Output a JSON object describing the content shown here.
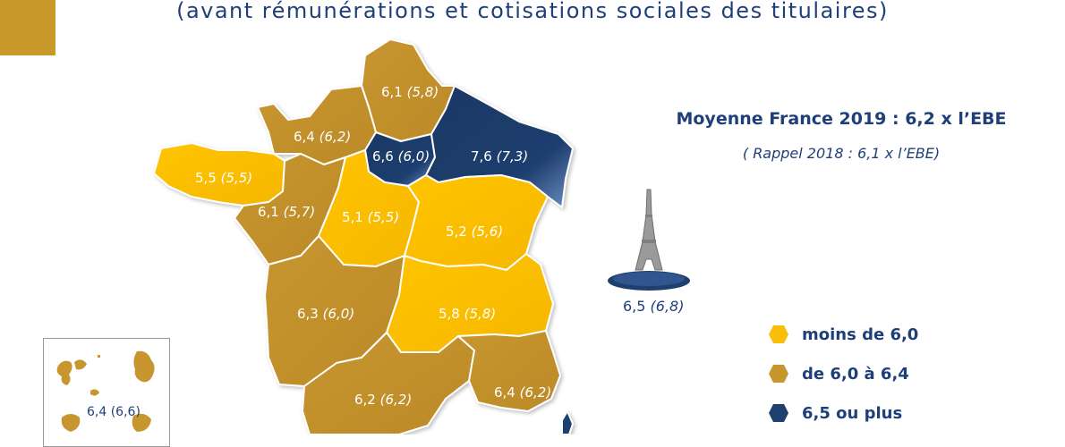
{
  "header": {
    "subtitle": "(avant rémunérations et cotisations sociales des titulaires)"
  },
  "summary": {
    "average": "Moyenne France 2019 : 6,2 x l’EBE",
    "recall": "( Rappel 2018 : 6,1 x l’EBE)"
  },
  "colors": {
    "below": "#f8be0a",
    "middle": "#c8962e",
    "high": "#1f3f6f",
    "accent_text": "#1f3f7a"
  },
  "legend": [
    {
      "label": "moins de 6,0",
      "color": "#f8be0a"
    },
    {
      "label": "de 6,0 à 6,4",
      "color": "#c8962e"
    },
    {
      "label": "6,5 ou plus",
      "color": "#1f3f6f"
    }
  ],
  "regions": [
    {
      "name": "hauts-de-france",
      "value": "6,1",
      "previous": "(5,8)",
      "category": "middle"
    },
    {
      "name": "normandie",
      "value": "6,4",
      "previous": "(6,2)",
      "category": "middle"
    },
    {
      "name": "bretagne",
      "value": "5,5",
      "previous": "(5,5)",
      "category": "below"
    },
    {
      "name": "ile-de-france",
      "value": "6,6",
      "previous": "(6,0)",
      "category": "high"
    },
    {
      "name": "grand-est",
      "value": "7,6",
      "previous": "(7,3)",
      "category": "high"
    },
    {
      "name": "pays-de-la-loire",
      "value": "6,1",
      "previous": "(5,7)",
      "category": "middle"
    },
    {
      "name": "centre-val-de-loire",
      "value": "5,1",
      "previous": "(5,5)",
      "category": "below"
    },
    {
      "name": "bourgogne-franche-comte",
      "value": "5,2",
      "previous": "(5,6)",
      "category": "below"
    },
    {
      "name": "nouvelle-aquitaine",
      "value": "6,3",
      "previous": "(6,0)",
      "category": "middle"
    },
    {
      "name": "auvergne-rhone-alpes",
      "value": "5,8",
      "previous": "(5,8)",
      "category": "below"
    },
    {
      "name": "occitanie",
      "value": "6,2",
      "previous": "(6,2)",
      "category": "middle"
    },
    {
      "name": "provence-alpes-cote-dazur",
      "value": "6,4",
      "previous": "(6,2)",
      "category": "middle"
    }
  ],
  "paris": {
    "value": "6,5",
    "previous": "(6,8)",
    "category": "high"
  },
  "overseas": {
    "label": "6,4 (6,6)"
  }
}
